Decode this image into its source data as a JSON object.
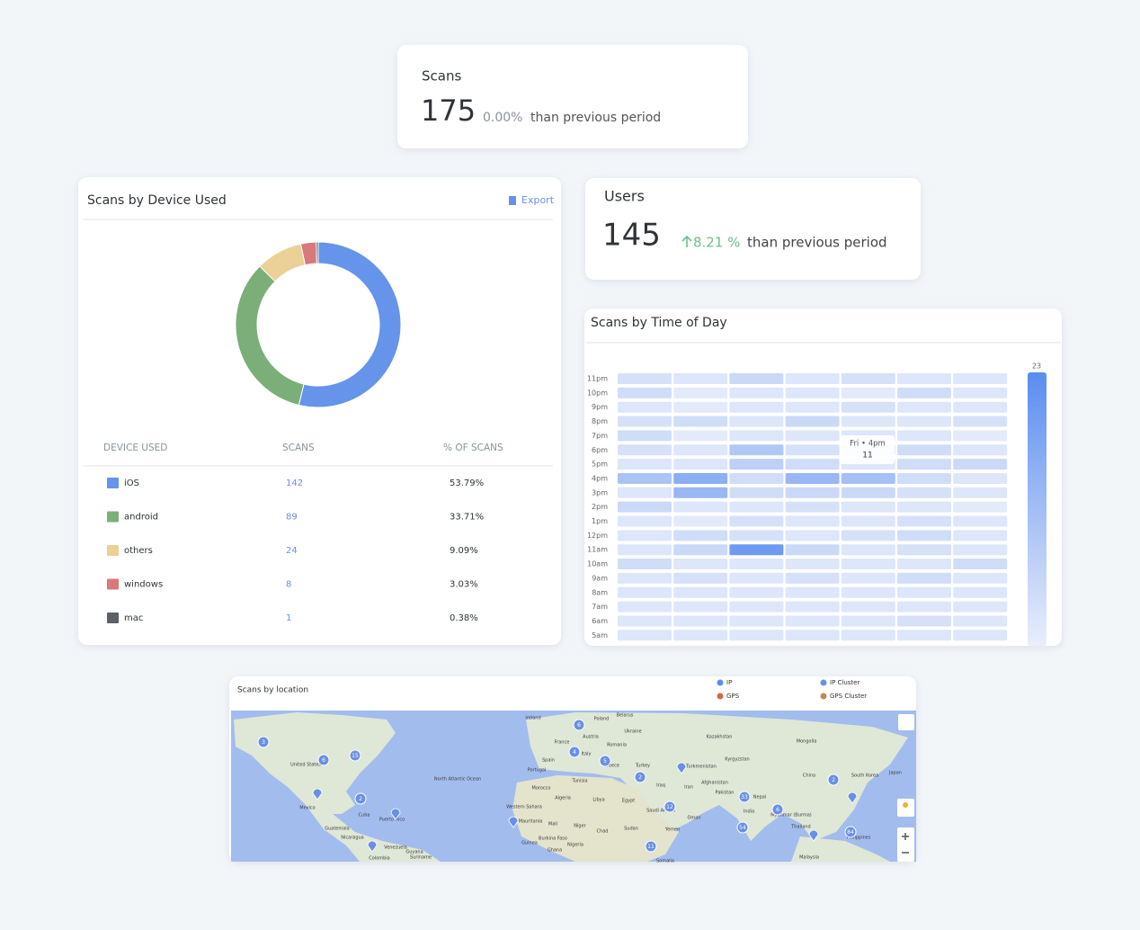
{
  "scans_card": {
    "title": "Scans",
    "value": 175,
    "change": "0.00%",
    "suffix": "than previous period"
  },
  "users_card": {
    "title": "Users",
    "value": 145,
    "change": "8.21 %",
    "suffix": "than previous period"
  },
  "device_chart": {
    "type": "donut",
    "title": "Scans by Device Used",
    "export": "Export",
    "columns": [
      "DEVICE USED",
      "SCANS",
      "% OF SCANS"
    ],
    "series": [
      {
        "name": "iOS",
        "color": "#6594ea",
        "value": 142,
        "percent": "53.79%"
      },
      {
        "name": "android",
        "color": "#7cae79",
        "value": 89,
        "percent": "33.71%"
      },
      {
        "name": "others",
        "color": "#ebd097",
        "value": 24,
        "percent": "9.09%"
      },
      {
        "name": "windows",
        "color": "#d9797c",
        "value": 8,
        "percent": "3.03%"
      },
      {
        "name": "mac",
        "color": "#5c6168",
        "value": 1,
        "percent": "0.38%"
      }
    ]
  },
  "time_chart": {
    "type": "heatmap",
    "title": "Scans by Time of Day",
    "rows": [
      "11pm",
      "10pm",
      "9pm",
      "8pm",
      "7pm",
      "6pm",
      "5pm",
      "4pm",
      "3pm",
      "2pm",
      "1pm",
      "12pm",
      "11am",
      "10am",
      "9am",
      "8am",
      "7am",
      "6am",
      "5am"
    ],
    "values": [
      [
        3,
        2,
        5,
        2,
        3,
        2,
        2
      ],
      [
        4,
        1,
        2,
        2,
        1,
        4,
        2
      ],
      [
        2,
        1,
        2,
        2,
        3,
        2,
        2
      ],
      [
        3,
        4,
        2,
        5,
        2,
        2,
        3
      ],
      [
        4,
        1,
        2,
        2,
        2,
        2,
        1
      ],
      [
        3,
        2,
        9,
        3,
        2,
        4,
        2
      ],
      [
        2,
        2,
        7,
        4,
        2,
        4,
        5
      ],
      [
        10,
        15,
        4,
        13,
        11,
        4,
        2
      ],
      [
        2,
        13,
        4,
        5,
        5,
        3,
        2
      ],
      [
        5,
        2,
        2,
        3,
        2,
        2,
        1
      ],
      [
        2,
        1,
        3,
        2,
        2,
        3,
        2
      ],
      [
        2,
        4,
        3,
        2,
        3,
        4,
        2
      ],
      [
        2,
        5,
        20,
        5,
        2,
        3,
        2
      ],
      [
        4,
        2,
        2,
        2,
        2,
        2,
        4
      ],
      [
        2,
        3,
        2,
        3,
        2,
        4,
        2
      ],
      [
        2,
        2,
        2,
        2,
        2,
        2,
        2
      ],
      [
        2,
        2,
        2,
        2,
        2,
        2,
        2
      ],
      [
        2,
        2,
        2,
        2,
        2,
        3,
        2
      ],
      [
        2,
        2,
        2,
        2,
        2,
        2,
        2
      ]
    ],
    "color_max": 23,
    "colors": [
      "#e9eefb",
      "#5b8def"
    ],
    "tooltip": {
      "label": "Fri • 4pm",
      "value": 11
    }
  },
  "location_map": {
    "title": "Scans by location",
    "legend": [
      "IP",
      "GPS",
      "IP Cluster",
      "GPS Cluster"
    ],
    "clusters": [
      3,
      6,
      15,
      2,
      6,
      4,
      5,
      2,
      12,
      33,
      6,
      54,
      11,
      2,
      84
    ],
    "places": [
      "Ireland",
      "Belarus",
      "Poland",
      "Ukraine",
      "Kazakhstan",
      "Mongolia",
      "France",
      "Austria",
      "Romania",
      "Italy",
      "Spain",
      "Portugal",
      "Kyrgyzstan",
      "Turkmenistan",
      "Turkey",
      "Greece",
      "Afghanistan",
      "China",
      "South Korea",
      "Japan",
      "Tunisia",
      "Iraq",
      "Iran",
      "Morocco",
      "Pakistan",
      "Nepal",
      "Algeria",
      "Libya",
      "Egypt",
      "India",
      "Western Sahara",
      "Saudi Arabia",
      "Oman",
      "Myanmar (Burma)",
      "Thailand",
      "Mauritania",
      "Mali",
      "Niger",
      "Chad",
      "Sudan",
      "Yemen",
      "Philippines",
      "Burkina Faso",
      "Nigeria",
      "Ghana",
      "Guinea",
      "Somalia",
      "Malaysia",
      "United States",
      "Mexico",
      "Cuba",
      "Puerto Rico",
      "Guatemala",
      "Nicaragua",
      "Venezuela",
      "Colombia",
      "Guyana",
      "Suriname",
      "North Atlantic Ocean"
    ]
  }
}
